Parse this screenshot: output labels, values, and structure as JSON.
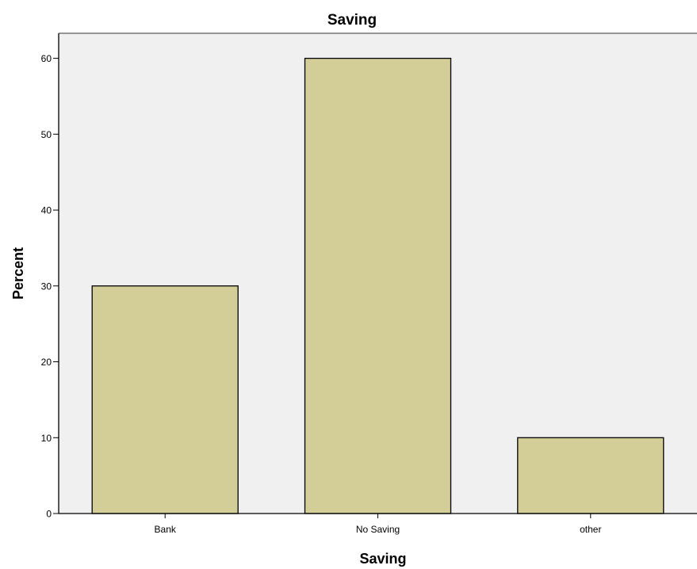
{
  "colors": {
    "plot_background": "#f0f0f0",
    "bar_fill": "#d3ce97",
    "bar_stroke": "#000000",
    "axis": "#000000"
  },
  "chart_data": {
    "type": "bar",
    "title": "Saving",
    "xlabel": "Saving",
    "ylabel": "Percent",
    "categories": [
      "Bank",
      "No Saving",
      "other"
    ],
    "values": [
      30,
      60,
      10
    ],
    "ylim": [
      0,
      63.3
    ],
    "yticks": [
      0,
      10,
      20,
      30,
      40,
      50,
      60
    ],
    "grid": false,
    "legend": "none"
  }
}
